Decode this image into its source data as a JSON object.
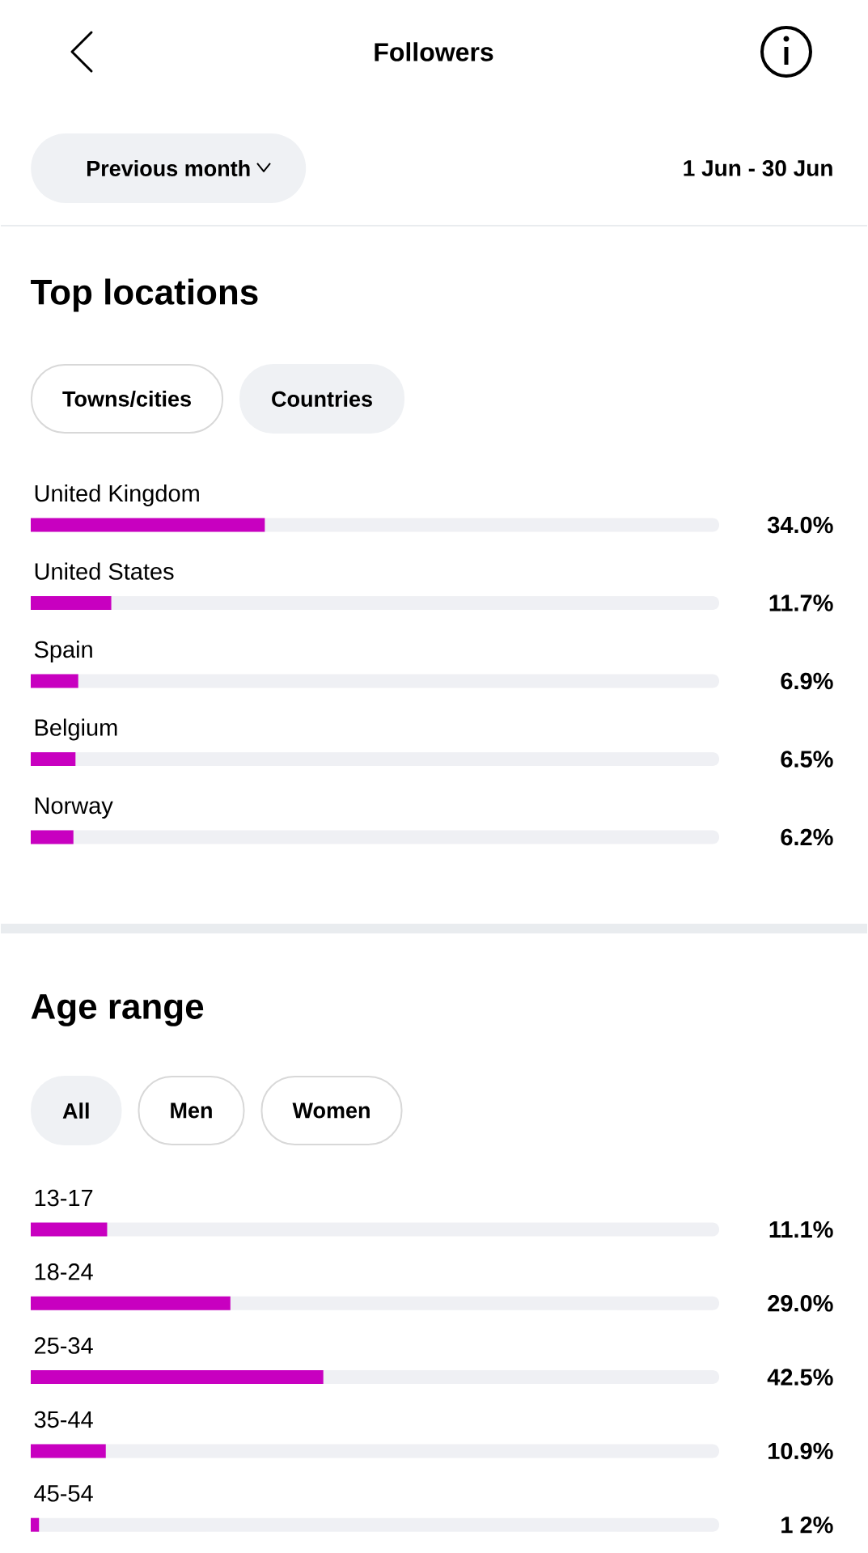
{
  "chart_data": [
    {
      "type": "other",
      "title": "Followers",
      "annotations": [
        "Previous month",
        "1 Jun - 30 Jun"
      ]
    },
    {
      "type": "bar",
      "orientation": "horizontal",
      "title": "Top locations",
      "annotations": [
        "Towns/cities",
        "Countries"
      ],
      "categories": [
        "United Kingdom",
        "United States",
        "Spain",
        "Belgium",
        "Norway"
      ],
      "values": [
        34.0,
        11.7,
        6.9,
        6.5,
        6.2
      ],
      "value_labels": [
        "34.0%",
        "11.7%",
        "6.9%",
        "6.5%",
        "6.2%"
      ],
      "color": "#c800c0",
      "xlim": [
        0,
        100
      ]
    },
    {
      "type": "bar",
      "orientation": "horizontal",
      "title": "Age range",
      "annotations": [
        "All",
        "Men",
        "Women"
      ],
      "categories": [
        "13-17",
        "18-24",
        "25-34",
        "35-44",
        "45-54"
      ],
      "values": [
        11.1,
        29.0,
        42.5,
        10.9,
        1.2
      ],
      "value_labels": [
        "11.1%",
        "29.0%",
        "42.5%",
        "10.9%",
        "1 2%"
      ],
      "color": "#c800c0",
      "xlim": [
        0,
        100
      ]
    }
  ]
}
